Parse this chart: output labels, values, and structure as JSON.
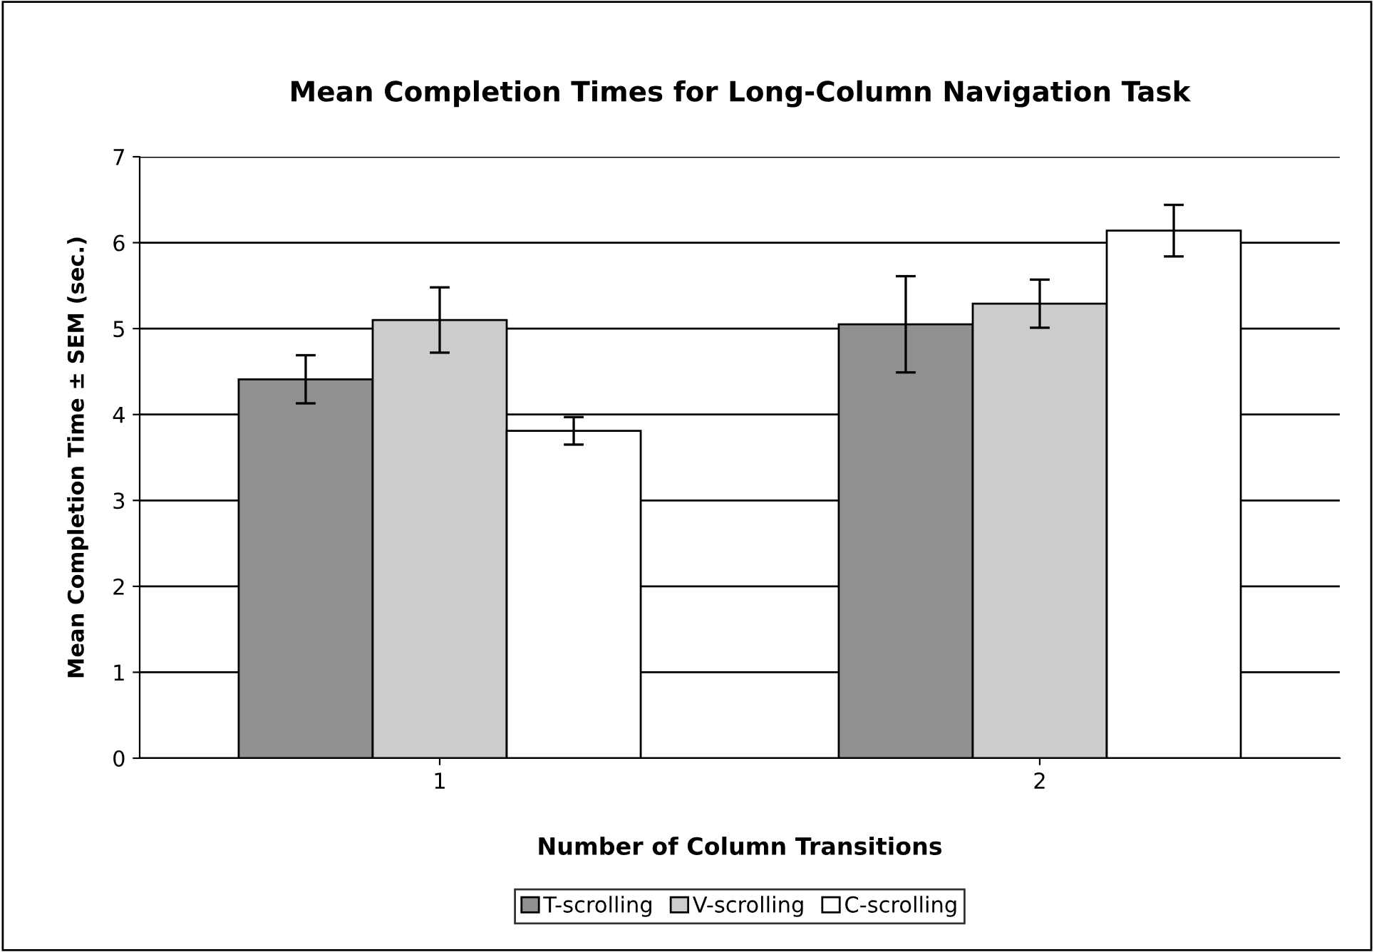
{
  "chart_data": {
    "type": "bar",
    "title": "Mean Completion Times for Long-Column Navigation Task",
    "xlabel": "Number of Column Transitions",
    "ylabel": "Mean Completion Time ± SEM (sec.)",
    "categories": [
      "1",
      "2"
    ],
    "series": [
      {
        "name": "T-scrolling",
        "color": "#909090",
        "values": [
          4.41,
          5.05
        ],
        "errors": [
          0.28,
          0.56
        ]
      },
      {
        "name": "V-scrolling",
        "color": "#cccccc",
        "values": [
          5.1,
          5.29
        ],
        "errors": [
          0.38,
          0.28
        ]
      },
      {
        "name": "C-scrolling",
        "color": "#ffffff",
        "values": [
          3.81,
          6.14
        ],
        "errors": [
          0.16,
          0.3
        ]
      }
    ],
    "ylim": [
      0,
      7
    ],
    "yticks": [
      0,
      1,
      2,
      3,
      4,
      5,
      6,
      7
    ],
    "grid": "y",
    "legend": "bottom"
  }
}
